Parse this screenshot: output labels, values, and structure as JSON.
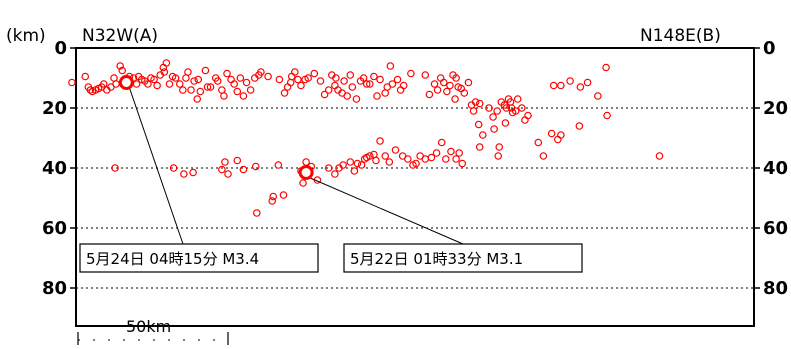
{
  "header": {
    "unit": "(km)",
    "left_label": "N32W(A)",
    "right_label": "N148E(B)"
  },
  "scale_bar": {
    "label": "50km"
  },
  "chart_data": {
    "type": "scatter",
    "title": "",
    "xlabel": "",
    "ylabel": "(km)",
    "x_left_label": "N32W(A)",
    "x_right_label": "N148E(B)",
    "xlim": [
      0,
      660
    ],
    "ylim": [
      0,
      80
    ],
    "y_inverted": true,
    "y_ticks": [
      0,
      20,
      40,
      60,
      80
    ],
    "grid": "dotted horizontal at 20, 40, 60, 80",
    "colors": {
      "marker": "#ff0000",
      "axis": "#000000"
    },
    "series": [
      {
        "points": [
          [
            -4,
            11.5
          ],
          [
            9,
            9.5
          ],
          [
            12,
            13
          ],
          [
            14,
            14
          ],
          [
            16,
            14.5
          ],
          [
            19,
            14
          ],
          [
            22,
            13.5
          ],
          [
            25,
            13
          ],
          [
            27,
            12
          ],
          [
            30,
            14
          ],
          [
            34,
            13
          ],
          [
            37,
            10
          ],
          [
            39,
            12
          ],
          [
            43,
            6
          ],
          [
            45,
            7.5
          ],
          [
            49,
            11.5
          ],
          [
            52,
            9.5
          ],
          [
            56,
            10
          ],
          [
            59,
            12
          ],
          [
            61,
            9.5
          ],
          [
            64,
            10.5
          ],
          [
            67,
            11
          ],
          [
            70,
            12
          ],
          [
            73,
            10
          ],
          [
            76,
            10.5
          ],
          [
            79,
            12.5
          ],
          [
            82,
            9
          ],
          [
            85,
            6.5
          ],
          [
            86,
            8
          ],
          [
            88,
            5
          ],
          [
            91,
            12
          ],
          [
            94,
            9.5
          ],
          [
            97,
            10
          ],
          [
            101,
            12
          ],
          [
            104,
            14
          ],
          [
            107,
            10
          ],
          [
            109,
            8
          ],
          [
            112,
            14
          ],
          [
            115,
            11
          ],
          [
            118,
            17
          ],
          [
            119,
            10.5
          ],
          [
            121,
            14.5
          ],
          [
            126,
            7.5
          ],
          [
            128,
            13
          ],
          [
            131,
            13
          ],
          [
            136,
            10
          ],
          [
            138,
            11
          ],
          [
            142,
            14
          ],
          [
            144,
            16
          ],
          [
            147,
            8.5
          ],
          [
            151,
            10.5
          ],
          [
            154,
            12
          ],
          [
            157,
            14.5
          ],
          [
            160,
            10
          ],
          [
            163,
            16
          ],
          [
            166,
            11.5
          ],
          [
            170,
            14
          ],
          [
            174,
            10
          ],
          [
            178,
            9
          ],
          [
            180,
            8
          ],
          [
            187,
            9.5
          ],
          [
            198,
            10.5
          ],
          [
            203,
            15
          ],
          [
            206,
            13
          ],
          [
            209,
            11.5
          ],
          [
            210,
            9.5
          ],
          [
            213,
            8
          ],
          [
            216,
            10.5
          ],
          [
            219,
            12.5
          ],
          [
            223,
            10.5
          ],
          [
            226,
            10
          ],
          [
            232,
            8.5
          ],
          [
            238,
            11
          ],
          [
            242,
            15.5
          ],
          [
            246,
            14
          ],
          [
            249,
            9
          ],
          [
            252,
            12.5
          ],
          [
            253,
            10
          ],
          [
            255,
            14
          ],
          [
            259,
            15
          ],
          [
            261,
            11
          ],
          [
            264,
            16
          ],
          [
            267,
            9
          ],
          [
            269,
            13
          ],
          [
            273,
            17
          ],
          [
            277,
            11
          ],
          [
            280,
            10
          ],
          [
            283,
            12
          ],
          [
            286,
            12
          ],
          [
            290,
            9.5
          ],
          [
            293,
            16
          ],
          [
            296,
            10.5
          ],
          [
            301,
            15
          ],
          [
            303,
            13
          ],
          [
            306,
            6
          ],
          [
            308,
            12
          ],
          [
            313,
            10.5
          ],
          [
            316,
            14
          ],
          [
            319,
            12.5
          ],
          [
            326,
            8.5
          ],
          [
            340,
            9
          ],
          [
            344,
            15.5
          ],
          [
            349,
            12
          ],
          [
            352,
            14
          ],
          [
            355,
            10
          ],
          [
            358,
            11.5
          ],
          [
            361,
            14.5
          ],
          [
            364,
            12.5
          ],
          [
            367,
            9
          ],
          [
            369,
            17
          ],
          [
            370,
            10
          ],
          [
            372,
            13
          ],
          [
            375,
            13.5
          ],
          [
            378,
            15
          ],
          [
            382,
            11.5
          ],
          [
            385,
            19
          ],
          [
            387,
            21
          ],
          [
            389,
            18
          ],
          [
            393,
            18.5
          ],
          [
            396,
            29
          ],
          [
            402,
            20
          ],
          [
            406,
            23
          ],
          [
            410,
            21
          ],
          [
            414,
            18
          ],
          [
            417,
            19
          ],
          [
            418,
            25
          ],
          [
            419,
            20
          ],
          [
            421,
            17
          ],
          [
            423,
            18
          ],
          [
            424,
            20
          ],
          [
            428,
            21
          ],
          [
            430,
            17
          ],
          [
            440,
            22.5
          ],
          [
            465,
            12.5
          ],
          [
            472,
            12.5
          ],
          [
            481,
            11
          ],
          [
            491,
            13
          ],
          [
            498,
            11.5
          ],
          [
            508,
            16
          ],
          [
            516,
            6.5
          ],
          [
            407,
            27
          ],
          [
            393,
            33
          ],
          [
            392,
            25.5
          ],
          [
            411,
            36
          ],
          [
            412,
            33
          ],
          [
            425,
            21.5
          ],
          [
            434,
            20
          ],
          [
            437,
            24
          ],
          [
            450,
            31.5
          ],
          [
            455,
            36
          ],
          [
            463,
            28.5
          ],
          [
            469,
            30.5
          ],
          [
            472,
            29
          ],
          [
            490,
            26
          ],
          [
            517,
            22.5
          ],
          [
            568,
            36
          ],
          [
            38,
            40
          ],
          [
            95,
            40
          ],
          [
            105,
            42
          ],
          [
            114,
            41.5
          ],
          [
            142,
            40.5
          ],
          [
            145,
            38
          ],
          [
            148,
            42
          ],
          [
            157,
            37.5
          ],
          [
            163,
            40.5
          ],
          [
            175,
            39.5
          ],
          [
            176,
            55
          ],
          [
            191,
            51
          ],
          [
            192,
            49.5
          ],
          [
            197,
            39
          ],
          [
            202,
            49
          ],
          [
            219,
            41
          ],
          [
            221,
            45
          ],
          [
            224,
            38
          ],
          [
            229,
            39.5
          ],
          [
            235,
            44
          ],
          [
            246,
            40
          ],
          [
            252,
            42
          ],
          [
            256,
            40
          ],
          [
            260,
            39
          ],
          [
            267,
            38
          ],
          [
            271,
            41
          ],
          [
            274,
            38.5
          ],
          [
            278,
            39
          ],
          [
            281,
            37
          ],
          [
            283,
            36.5
          ],
          [
            286,
            36
          ],
          [
            290,
            35.5
          ],
          [
            292,
            37.5
          ],
          [
            296,
            31
          ],
          [
            301,
            36
          ],
          [
            305,
            38
          ],
          [
            311,
            34
          ],
          [
            318,
            36
          ],
          [
            323,
            37
          ],
          [
            328,
            39
          ],
          [
            331,
            38.5
          ],
          [
            335,
            36
          ],
          [
            340,
            37
          ],
          [
            346,
            36.5
          ],
          [
            351,
            35
          ],
          [
            356,
            31.5
          ],
          [
            360,
            37
          ],
          [
            365,
            34.5
          ],
          [
            370,
            37
          ],
          [
            373,
            35
          ],
          [
            376,
            38.5
          ]
        ]
      }
    ],
    "highlighted_points": [
      {
        "x": 49,
        "y": 11.5,
        "label": "5月24日 04時15分 M3.4"
      },
      {
        "x": 224,
        "y": 41.5,
        "label": "5月22日 01時33分 M3.1"
      }
    ]
  }
}
